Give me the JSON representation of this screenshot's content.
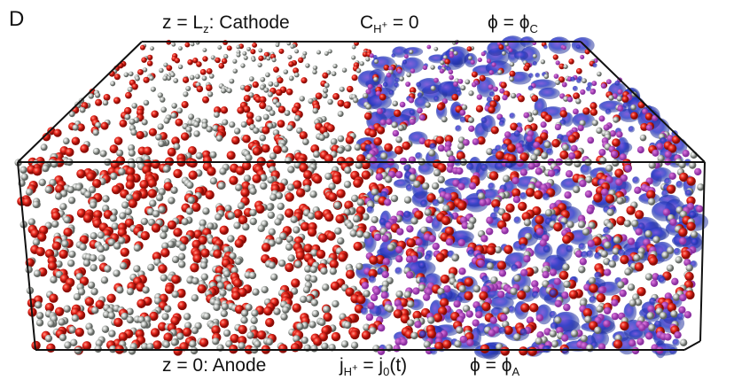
{
  "panel_label": "D",
  "top_labels": {
    "cathode": {
      "prefix": "z = L",
      "sub": "z",
      "suffix": ": Cathode"
    },
    "concentration": {
      "prefix": "C",
      "sub": "H",
      "sup": "+",
      "suffix": " = 0"
    },
    "potential": {
      "prefix": "ϕ = ϕ",
      "sub": "C"
    }
  },
  "bottom_labels": {
    "anode": {
      "text": "z = 0: Anode"
    },
    "flux": {
      "prefix": "j",
      "sub": "H",
      "sup": "+",
      "mid": " = j",
      "sub2": "0",
      "suffix": "(t)"
    },
    "potential": {
      "prefix": "ϕ = ϕ",
      "sub": "A"
    }
  },
  "colors": {
    "oxygen": "#e8281e",
    "hydrogen": "#b8bcb8",
    "density": "#2f3fc8",
    "hydronium": "#8a2fa0",
    "box": "#111111"
  }
}
